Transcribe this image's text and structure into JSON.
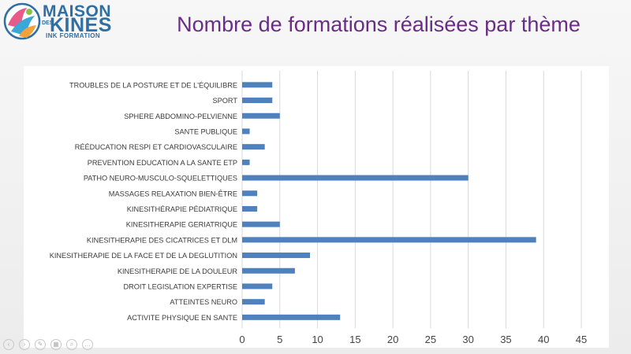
{
  "slide": {
    "title": "Nombre de formations réalisées par thème"
  },
  "logo": {
    "maison": "MAISON",
    "des": "DES",
    "kines": "KINES",
    "sub": "INK FORMATION"
  },
  "toolbar": {
    "buttons": [
      "prev-icon",
      "next-icon",
      "pen-icon",
      "slides-icon",
      "zoom-icon",
      "more-icon"
    ]
  },
  "colors": {
    "bar": "#4f81bd",
    "title": "#6a2d86",
    "brand": "#2f6fa4"
  },
  "chart_data": {
    "type": "bar",
    "orientation": "horizontal",
    "categories": [
      "TROUBLES DE LA POSTURE ET DE L'ÉQUILIBRE",
      "SPORT",
      "SPHERE ABDOMINO-PELVIENNE",
      "SANTE PUBLIQUE",
      "RÉÉDUCATION RESPI ET CARDIOVASCULAIRE",
      "PREVENTION EDUCATION A LA SANTE ETP",
      "PATHO NEURO-MUSCULO-SQUELETTIQUES",
      "MASSAGES RELAXATION BIEN-ÊTRE",
      "KINESITHÉRAPIE PÉDIATRIQUE",
      "KINESITHERAPIE GERIATRIQUE",
      "KINESITHERAPIE DES CICATRICES ET DLM",
      "KINESITHERAPIE DE LA FACE ET DE LA DEGLUTITION",
      "KINESITHERAPIE DE LA DOULEUR",
      "DROIT LEGISLATION EXPERTISE",
      "ATTEINTES NEURO",
      "ACTIVITE PHYSIQUE EN SANTE"
    ],
    "values": [
      4,
      4,
      5,
      1,
      3,
      1,
      30,
      2,
      2,
      5,
      39,
      9,
      7,
      4,
      3,
      13
    ],
    "xticks": [
      "0",
      "5",
      "10",
      "15",
      "20",
      "25",
      "30",
      "35",
      "40",
      "45"
    ],
    "xlim": [
      0,
      45
    ],
    "grid": true,
    "legend": "none"
  }
}
